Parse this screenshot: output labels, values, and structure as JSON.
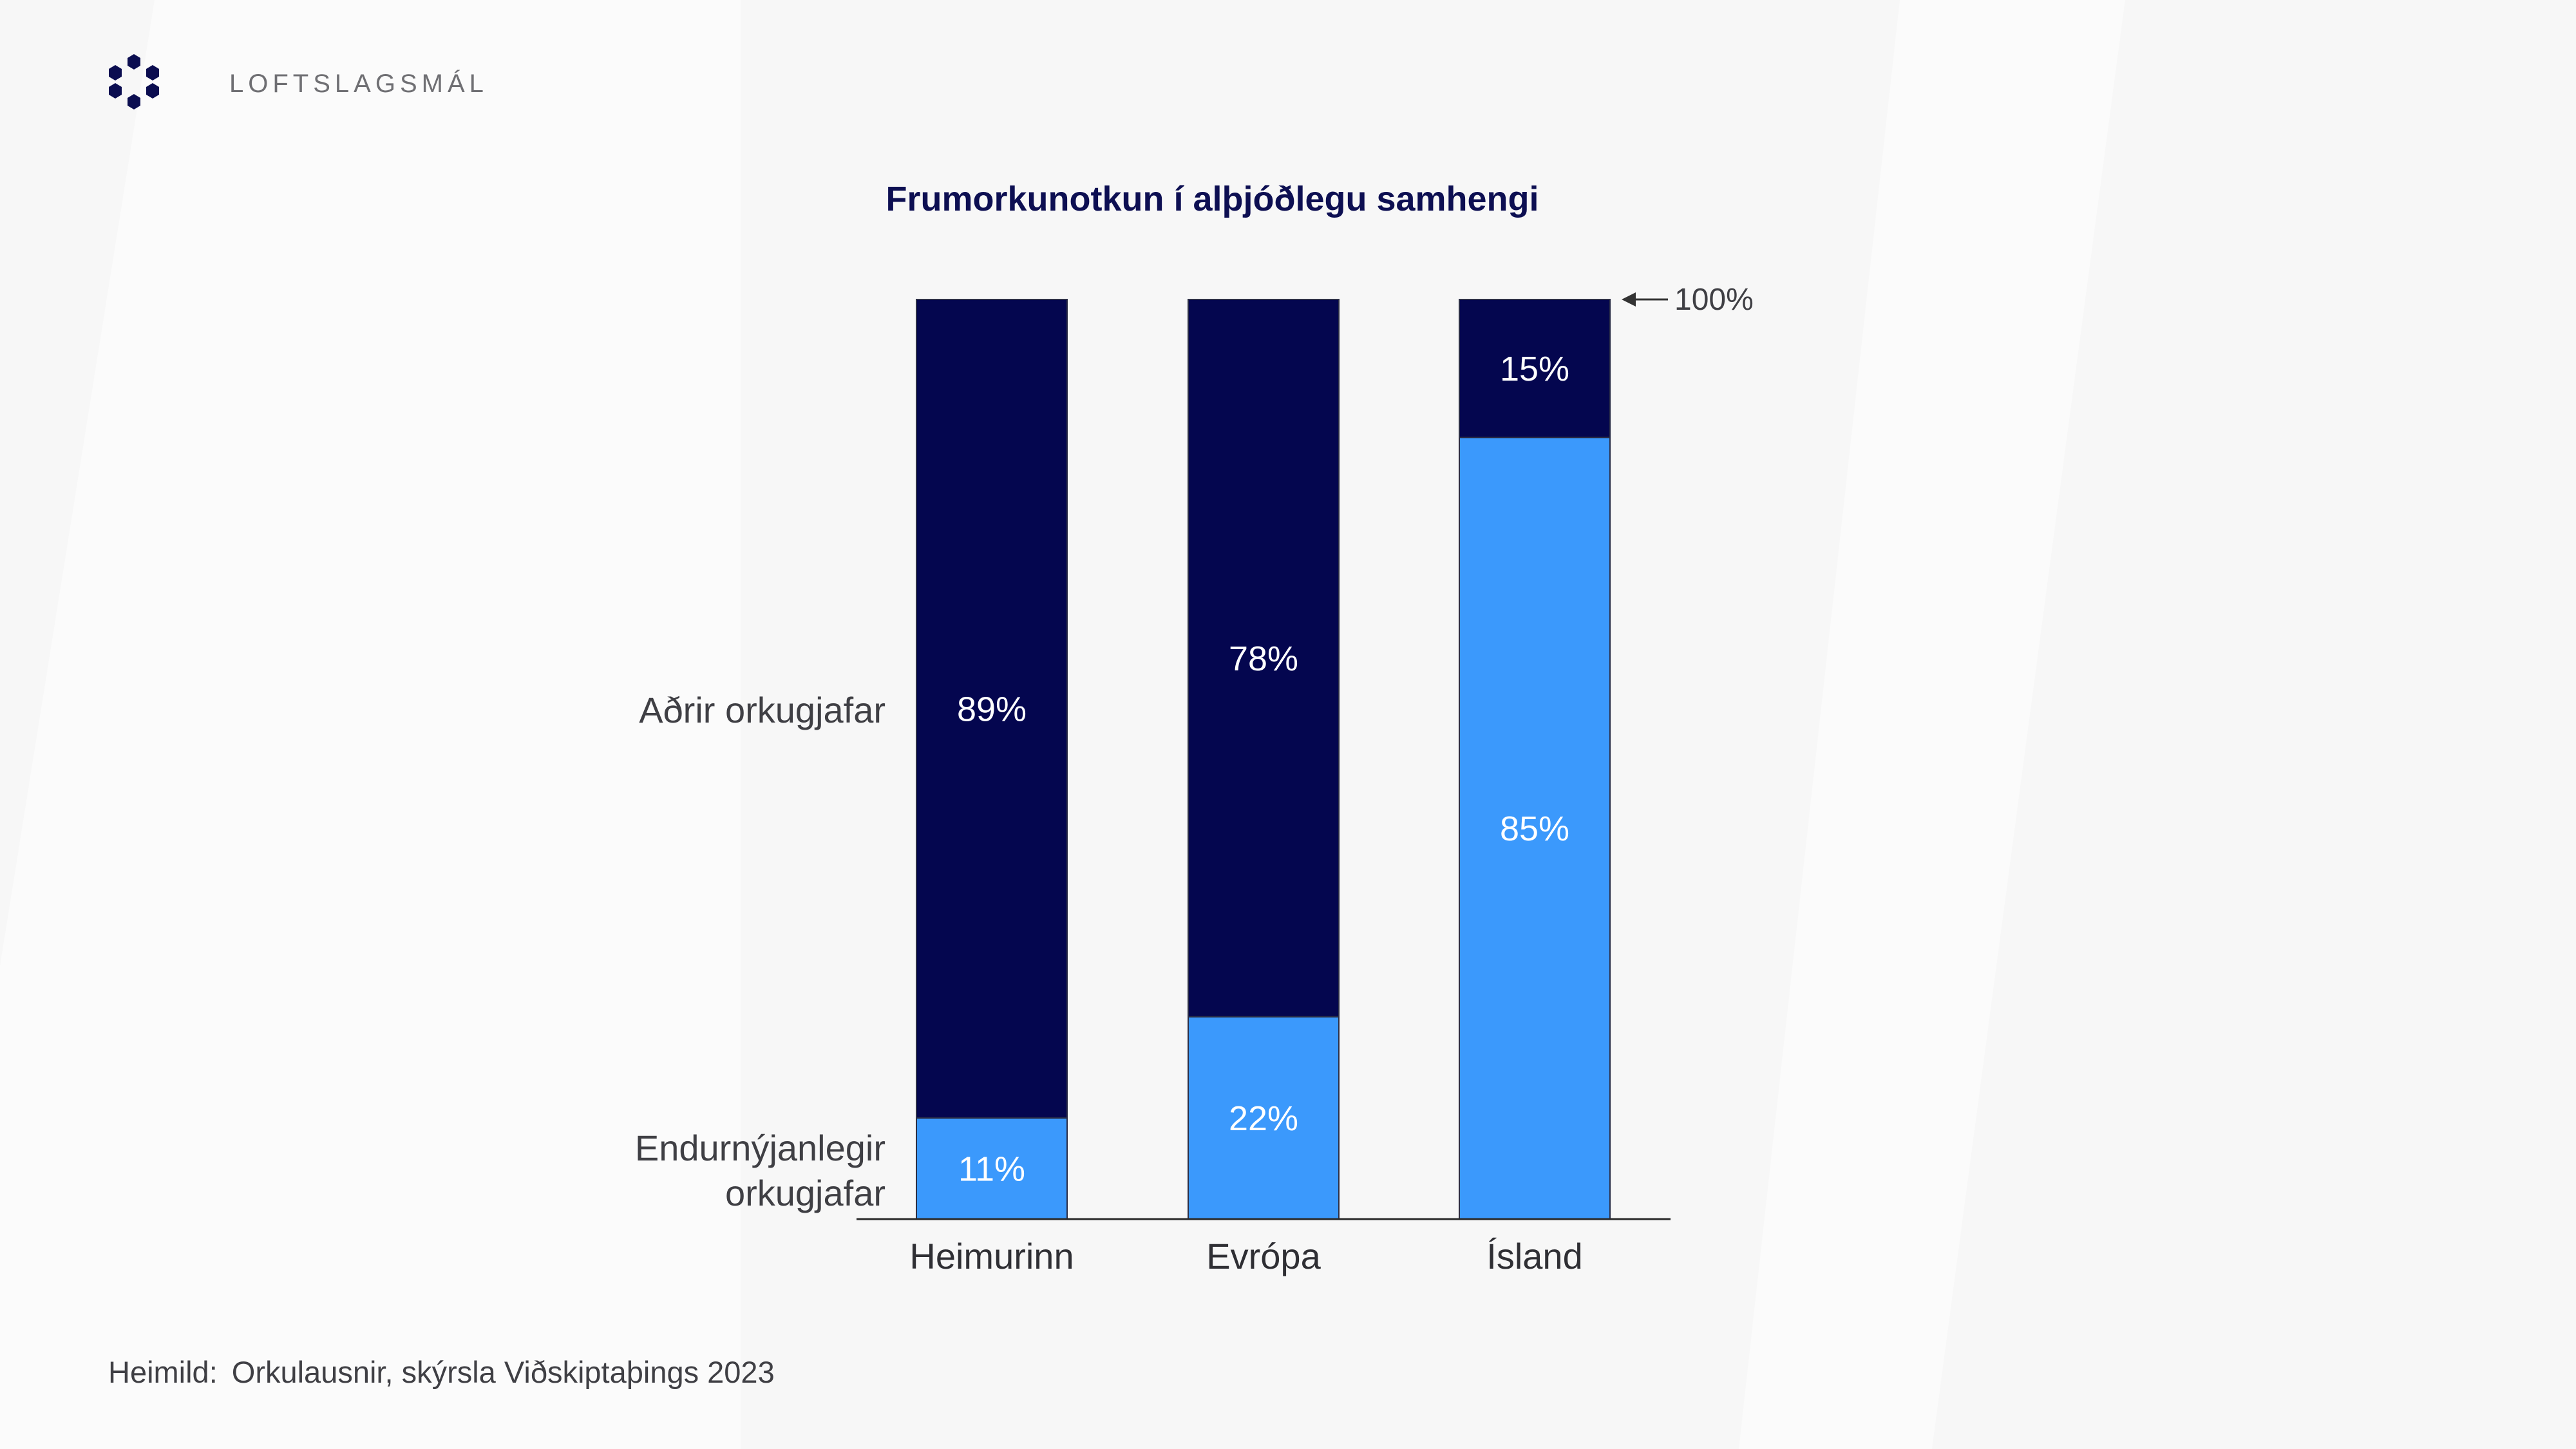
{
  "header": {
    "section_label": "LOFTSLAGSMÁL",
    "logo_icon": "hexagon-cluster-logo-icon"
  },
  "colors": {
    "background": "#f7f7f7",
    "other_sources": "#04064f",
    "renewable_sources": "#3b99fc",
    "title": "#0d0f52",
    "text": "#3f3f44"
  },
  "chart_data": {
    "type": "bar",
    "stacked": true,
    "title": "Frumorkunotkun í alþjóðlegu samhengi",
    "categories": [
      "Heimurinn",
      "Evrópa",
      "Ísland"
    ],
    "series": [
      {
        "name": "Endurnýjanlegir orkugjafar",
        "values": [
          11,
          22,
          85
        ],
        "labels": [
          "11%",
          "22%",
          "85%"
        ],
        "color": "#3b99fc"
      },
      {
        "name": "Aðrir orkugjafar",
        "values": [
          89,
          78,
          15
        ],
        "labels": [
          "89%",
          "78%",
          "15%"
        ],
        "color": "#04064f"
      }
    ],
    "ylim": [
      0,
      100
    ],
    "annotation": "100%",
    "grid": false,
    "legend": "left, as inline labels"
  },
  "source": {
    "label": "Heimild:",
    "text": "Orkulausnir, skýrsla Viðskiptaþings 2023"
  }
}
